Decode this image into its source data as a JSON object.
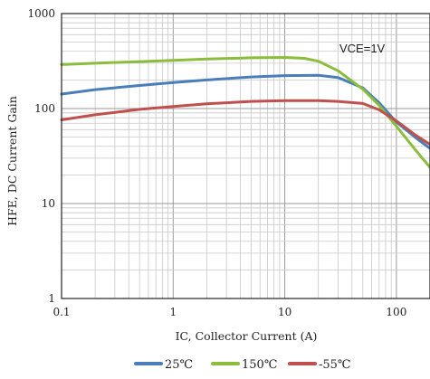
{
  "chart_data": {
    "type": "line",
    "title": "",
    "annotation": "VCE=1V",
    "xlabel": "IC, Collector Current (A)",
    "ylabel": "HFE, DC Current Gain",
    "x_scale": "log",
    "y_scale": "log",
    "xlim": [
      0.1,
      200
    ],
    "ylim": [
      1,
      1000
    ],
    "grid": true,
    "legend_position": "bottom",
    "x_ticks": [
      {
        "value": 0.1,
        "label": "0.1"
      },
      {
        "value": 1,
        "label": "1"
      },
      {
        "value": 10,
        "label": "10"
      },
      {
        "value": 100,
        "label": "100"
      }
    ],
    "y_ticks": [
      {
        "value": 1,
        "label": "1"
      },
      {
        "value": 10,
        "label": "10"
      },
      {
        "value": 100,
        "label": "100"
      },
      {
        "value": 1000,
        "label": "1000"
      }
    ],
    "series": [
      {
        "name": "25℃",
        "color": "#4a7ebb",
        "points": [
          [
            0.1,
            142
          ],
          [
            0.2,
            158
          ],
          [
            0.5,
            175
          ],
          [
            1,
            188
          ],
          [
            2,
            200
          ],
          [
            5,
            215
          ],
          [
            10,
            222
          ],
          [
            20,
            224
          ],
          [
            30,
            212
          ],
          [
            50,
            165
          ],
          [
            70,
            115
          ],
          [
            100,
            72
          ],
          [
            150,
            49
          ],
          [
            200,
            38
          ]
        ]
      },
      {
        "name": "150℃",
        "color": "#8bbd3c",
        "points": [
          [
            0.1,
            290
          ],
          [
            0.2,
            300
          ],
          [
            0.5,
            312
          ],
          [
            1,
            322
          ],
          [
            2,
            332
          ],
          [
            5,
            342
          ],
          [
            10,
            345
          ],
          [
            15,
            338
          ],
          [
            20,
            315
          ],
          [
            30,
            250
          ],
          [
            50,
            160
          ],
          [
            70,
            108
          ],
          [
            100,
            65
          ],
          [
            150,
            36
          ],
          [
            200,
            24
          ]
        ]
      },
      {
        "name": "-55℃",
        "color": "#c0504d",
        "points": [
          [
            0.1,
            76
          ],
          [
            0.2,
            86
          ],
          [
            0.5,
            98
          ],
          [
            1,
            105
          ],
          [
            2,
            112
          ],
          [
            5,
            119
          ],
          [
            10,
            121
          ],
          [
            20,
            121
          ],
          [
            30,
            119
          ],
          [
            50,
            113
          ],
          [
            70,
            97
          ],
          [
            100,
            74
          ],
          [
            150,
            52
          ],
          [
            200,
            42
          ]
        ]
      }
    ]
  }
}
